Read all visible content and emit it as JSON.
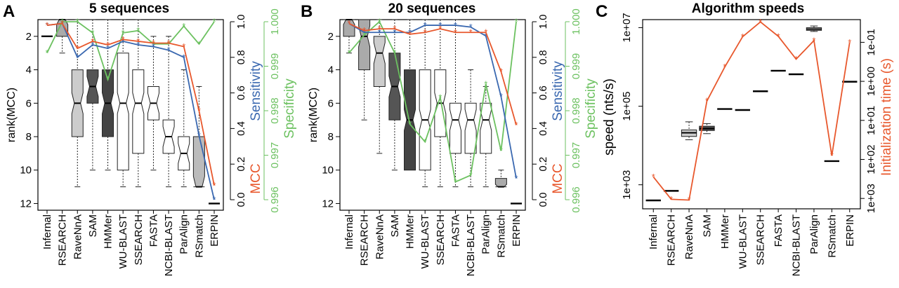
{
  "chart_data": [
    {
      "type": "box",
      "panel": "A",
      "title": "5 sequences",
      "ylabel": "rank(MCC)",
      "y2label": "MCC",
      "y2label_sensitivity": "Sensitivity",
      "y3label": "Specificity",
      "y_reversed": true,
      "ylim": [
        12.4,
        1
      ],
      "yticks": [
        "2",
        "4",
        "6",
        "8",
        "10",
        "12"
      ],
      "y2ticks": [
        "0.0",
        "0.2",
        "0.4",
        "0.6",
        "0.8",
        "1.0"
      ],
      "y3ticks": [
        "0.996",
        "0.997",
        "0.998",
        "0.999",
        "1.000"
      ],
      "categories": [
        "Infernal",
        "RSEARCH",
        "RaveNnA",
        "SAM",
        "HMMer",
        "WU-BLAST",
        "SSEARCH",
        "FASTA",
        "NCBI-BLAST",
        "ParAlign",
        "RSmatch",
        "ERPIN"
      ],
      "boxes": [
        {
          "min": 2,
          "q1": 2,
          "median": 2,
          "q3": 2,
          "max": 2,
          "fill": "#000000"
        },
        {
          "min": 1,
          "q1": 1,
          "median": 1,
          "q3": 2,
          "max": 3,
          "fill": "#aaaaaa"
        },
        {
          "min": 1,
          "q1": 4,
          "median": 6,
          "q3": 8,
          "max": 11,
          "fill": "#cccccc"
        },
        {
          "min": 1,
          "q1": 4,
          "median": 5,
          "q3": 6,
          "max": 10,
          "fill": "#555555"
        },
        {
          "min": 1,
          "q1": 4,
          "median": 6,
          "q3": 8,
          "max": 10,
          "fill": "#444444"
        },
        {
          "min": 1,
          "q1": 3,
          "median": 6,
          "q3": 10,
          "max": 11,
          "fill": "#ffffff"
        },
        {
          "min": 1,
          "q1": 4,
          "median": 6,
          "q3": 9,
          "max": 11,
          "fill": "#ffffff"
        },
        {
          "min": 2,
          "q1": 5,
          "median": 6,
          "q3": 7,
          "max": 10,
          "fill": "#ffffff"
        },
        {
          "min": 2,
          "q1": 7,
          "median": 8,
          "q3": 9,
          "max": 11,
          "fill": "#ffffff"
        },
        {
          "min": 4,
          "q1": 8,
          "median": 9,
          "q3": 10,
          "max": 11,
          "fill": "#ffffff"
        },
        {
          "min": 5,
          "q1": 8,
          "median": 11,
          "q3": 11,
          "max": 11,
          "fill": "#bbbbbb"
        },
        {
          "min": 12,
          "q1": 12,
          "median": 12,
          "q3": 12,
          "max": 12,
          "fill": "#000000"
        }
      ],
      "series": [
        {
          "name": "MCC",
          "color": "#e8582d",
          "axis": "y2",
          "values": [
            0.98,
            0.99,
            0.85,
            0.89,
            0.87,
            0.9,
            0.89,
            0.88,
            0.88,
            0.86,
            0.5,
            0.08
          ]
        },
        {
          "name": "Sensitivity",
          "color": "#3a68b0",
          "axis": "y2",
          "values": [
            0.98,
            0.99,
            0.8,
            0.87,
            0.85,
            0.89,
            0.87,
            0.86,
            0.84,
            0.8,
            0.36,
            0.0
          ]
        },
        {
          "name": "Specificity",
          "color": "#6cc160",
          "axis": "y3",
          "values": [
            0.9993,
            1.0,
            1.0,
            0.99975,
            0.9987,
            0.99975,
            0.9998,
            0.9995,
            0.9995,
            0.9999,
            0.9995,
            1.0
          ]
        }
      ]
    },
    {
      "type": "box",
      "panel": "B",
      "title": "20 sequences",
      "ylabel": "rank(MCC)",
      "y2label": "MCC",
      "y2label_sensitivity": "Sensitivity",
      "y3label": "Specificity",
      "y_reversed": true,
      "ylim": [
        12.4,
        1
      ],
      "yticks": [
        "2",
        "4",
        "6",
        "8",
        "10",
        "12"
      ],
      "y2ticks": [
        "0.0",
        "0.2",
        "0.4",
        "0.6",
        "0.8",
        "1.0"
      ],
      "y3ticks": [
        "0.996",
        "0.997",
        "0.998",
        "0.999",
        "1.000"
      ],
      "categories": [
        "Infernal",
        "RSEARCH",
        "RaveNnA",
        "SAM",
        "HMMer",
        "WU-BLAST",
        "SSEARCH",
        "FASTA",
        "NCBI-BLAST",
        "ParAlign",
        "RSmatch",
        "ERPIN"
      ],
      "boxes": [
        {
          "min": 1,
          "q1": 1,
          "median": 1,
          "q3": 2,
          "max": 3,
          "fill": "#aaaaaa"
        },
        {
          "min": 1,
          "q1": 1,
          "median": 2,
          "q3": 4,
          "max": 7,
          "fill": "#aaaaaa"
        },
        {
          "min": 1,
          "q1": 2,
          "median": 3,
          "q3": 5,
          "max": 9,
          "fill": "#cccccc"
        },
        {
          "min": 1,
          "q1": 3,
          "median": 5,
          "q3": 7,
          "max": 10,
          "fill": "#555555"
        },
        {
          "min": 1,
          "q1": 4,
          "median": 7,
          "q3": 10,
          "max": 10,
          "fill": "#444444"
        },
        {
          "min": 1,
          "q1": 4,
          "median": 7,
          "q3": 10,
          "max": 11,
          "fill": "#ffffff"
        },
        {
          "min": 1,
          "q1": 4,
          "median": 6,
          "q3": 8,
          "max": 11,
          "fill": "#ffffff"
        },
        {
          "min": 1,
          "q1": 6,
          "median": 7,
          "q3": 9,
          "max": 11,
          "fill": "#ffffff"
        },
        {
          "min": 4,
          "q1": 6,
          "median": 7,
          "q3": 9,
          "max": 11,
          "fill": "#ffffff"
        },
        {
          "min": 5,
          "q1": 6,
          "median": 7,
          "q3": 9,
          "max": 11,
          "fill": "#ffffff"
        },
        {
          "min": 10,
          "q1": 10.5,
          "median": 11,
          "q3": 11,
          "max": 11,
          "fill": "#aaaaaa"
        },
        {
          "min": 12,
          "q1": 12,
          "median": 12,
          "q3": 12,
          "max": 12,
          "fill": "#000000"
        }
      ],
      "series": [
        {
          "name": "MCC",
          "color": "#e8582d",
          "axis": "y2",
          "values": [
            0.99,
            0.95,
            0.96,
            0.96,
            0.93,
            0.94,
            0.96,
            0.94,
            0.94,
            0.94,
            0.72,
            0.42
          ]
        },
        {
          "name": "Sensitivity",
          "color": "#3a68b0",
          "axis": "y2",
          "values": [
            0.99,
            0.94,
            0.94,
            0.94,
            0.94,
            0.98,
            0.98,
            0.98,
            0.97,
            0.92,
            0.58,
            0.12
          ]
        },
        {
          "name": "Specificity",
          "color": "#6cc160",
          "axis": "y3",
          "values": [
            0.9993,
            0.9997,
            1.0,
            0.9993,
            0.9977,
            0.9973,
            0.9983,
            0.9964,
            0.99655,
            0.9986,
            0.9971,
            1.0
          ]
        }
      ]
    },
    {
      "type": "box",
      "panel": "C",
      "title": "Algorithm speeds",
      "ylabel": "speed (nts/s)",
      "y2label": "Initialization time (s)",
      "y_scale": "log",
      "y2_scale": "log",
      "y2_reversed": true,
      "yticks": [
        "1e+03",
        "1e+05",
        "1e+07"
      ],
      "y2ticks": [
        "1e+03",
        "1e+02",
        "1e+01",
        "1e+00",
        "1e-01"
      ],
      "categories": [
        "Infernal",
        "RSEARCH",
        "RaveNnA",
        "SAM",
        "HMMer",
        "WU-BLAST",
        "SSEARCH",
        "FASTA",
        "NCBI-BLAST",
        "ParAlign",
        "RSmatch",
        "ERPIN"
      ],
      "boxes": [
        {
          "min": 400,
          "q1": 400,
          "median": 400,
          "q3": 400,
          "max": 400,
          "fill": "#ffffff"
        },
        {
          "min": 700,
          "q1": 700,
          "median": 700,
          "q3": 700,
          "max": 700,
          "fill": "#ffffff"
        },
        {
          "min": 14000,
          "q1": 17000,
          "median": 21000,
          "q3": 25000,
          "max": 40000,
          "fill": "#cccccc"
        },
        {
          "min": 20000,
          "q1": 24000,
          "median": 27000,
          "q3": 31000,
          "max": 36000,
          "fill": "#555555"
        },
        {
          "min": 85000,
          "q1": 85000,
          "median": 85000,
          "q3": 85000,
          "max": 85000,
          "fill": "#ffffff"
        },
        {
          "min": 80000,
          "q1": 80000,
          "median": 80000,
          "q3": 80000,
          "max": 80000,
          "fill": "#ffffff"
        },
        {
          "min": 240000,
          "q1": 240000,
          "median": 240000,
          "q3": 240000,
          "max": 240000,
          "fill": "#ffffff"
        },
        {
          "min": 800000,
          "q1": 800000,
          "median": 800000,
          "q3": 800000,
          "max": 800000,
          "fill": "#ffffff"
        },
        {
          "min": 650000,
          "q1": 650000,
          "median": 650000,
          "q3": 650000,
          "max": 650000,
          "fill": "#ffffff"
        },
        {
          "min": 8000000,
          "q1": 8500000,
          "median": 9200000,
          "q3": 10000000,
          "max": 11000000,
          "fill": "#ffffff"
        },
        {
          "min": 4000,
          "q1": 4000,
          "median": 4000,
          "q3": 4000,
          "max": 4000,
          "fill": "#ffffff"
        },
        {
          "min": 420000,
          "q1": 420000,
          "median": 420000,
          "q3": 420000,
          "max": 420000,
          "fill": "#ffffff"
        }
      ],
      "series": [
        {
          "name": "Initialization time (s)",
          "color": "#e8582d",
          "axis": "y2",
          "values": [
            280,
            1050,
            1100,
            3.2,
            0.43,
            0.072,
            0.03,
            0.07,
            0.27,
            0.09,
            80,
            0.1
          ]
        }
      ]
    }
  ]
}
